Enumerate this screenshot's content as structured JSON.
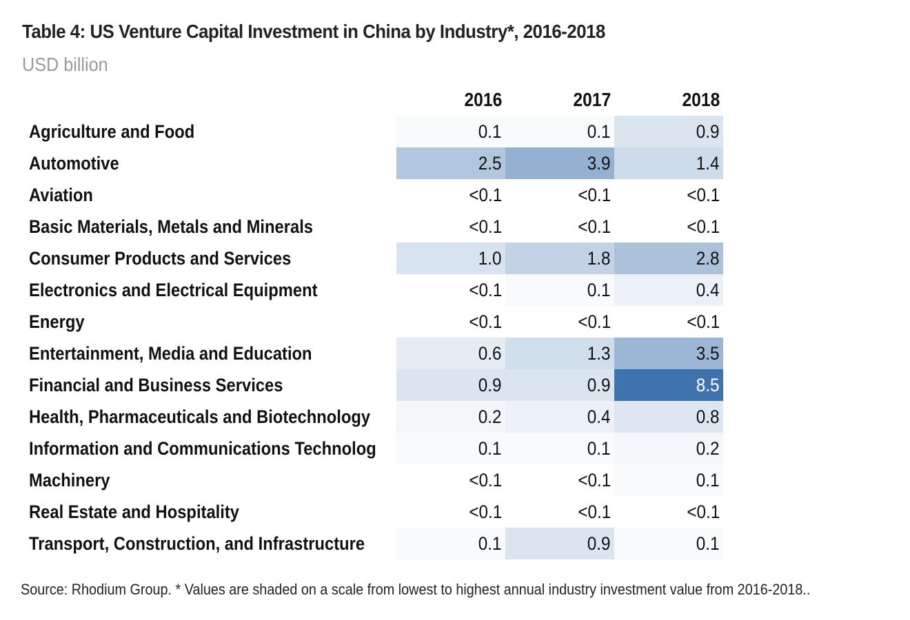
{
  "title": "Table 4: US Venture Capital Investment in China by Industry*, 2016-2018",
  "subtitle": "USD billion",
  "footnote": "Source: Rhodium Group. * Values are shaded on a scale from lowest to highest annual industry investment value from 2016-2018..",
  "colors": {
    "low": "#ffffff",
    "high": "#3f73ad",
    "text_dark": "#111111",
    "text_light": "#ffffff"
  },
  "chart_data": {
    "type": "heatmap",
    "title": "Table 4: US Venture Capital Investment in China by Industry*, 2016-2018",
    "subtitle": "USD billion",
    "columns": [
      "2016",
      "2017",
      "2018"
    ],
    "value_range": [
      0,
      8.5
    ],
    "rows": [
      {
        "label": "Agriculture and Food",
        "values": [
          "0.1",
          "0.1",
          "0.9"
        ]
      },
      {
        "label": "Automotive",
        "values": [
          "2.5",
          "3.9",
          "1.4"
        ]
      },
      {
        "label": "Aviation",
        "values": [
          "<0.1",
          "<0.1",
          "<0.1"
        ]
      },
      {
        "label": "Basic Materials, Metals and Minerals",
        "values": [
          "<0.1",
          "<0.1",
          "<0.1"
        ]
      },
      {
        "label": "Consumer Products and Services",
        "values": [
          "1.0",
          "1.8",
          "2.8"
        ]
      },
      {
        "label": "Electronics and Electrical Equipment",
        "values": [
          "<0.1",
          "0.1",
          "0.4"
        ]
      },
      {
        "label": "Energy",
        "values": [
          "<0.1",
          "<0.1",
          "<0.1"
        ]
      },
      {
        "label": "Entertainment, Media and Education",
        "values": [
          "0.6",
          "1.3",
          "3.5"
        ]
      },
      {
        "label": "Financial and Business Services",
        "values": [
          "0.9",
          "0.9",
          "8.5"
        ]
      },
      {
        "label": "Health, Pharmaceuticals and Biotechnology",
        "values": [
          "0.2",
          "0.4",
          "0.8"
        ]
      },
      {
        "label": "Information and Communications Technolog",
        "values": [
          "0.1",
          "0.1",
          "0.2"
        ]
      },
      {
        "label": "Machinery",
        "values": [
          "<0.1",
          "<0.1",
          "0.1"
        ]
      },
      {
        "label": "Real Estate and Hospitality",
        "values": [
          "<0.1",
          "<0.1",
          "<0.1"
        ]
      },
      {
        "label": "Transport, Construction, and Infrastructure",
        "values": [
          "0.1",
          "0.9",
          "0.1"
        ]
      }
    ]
  }
}
